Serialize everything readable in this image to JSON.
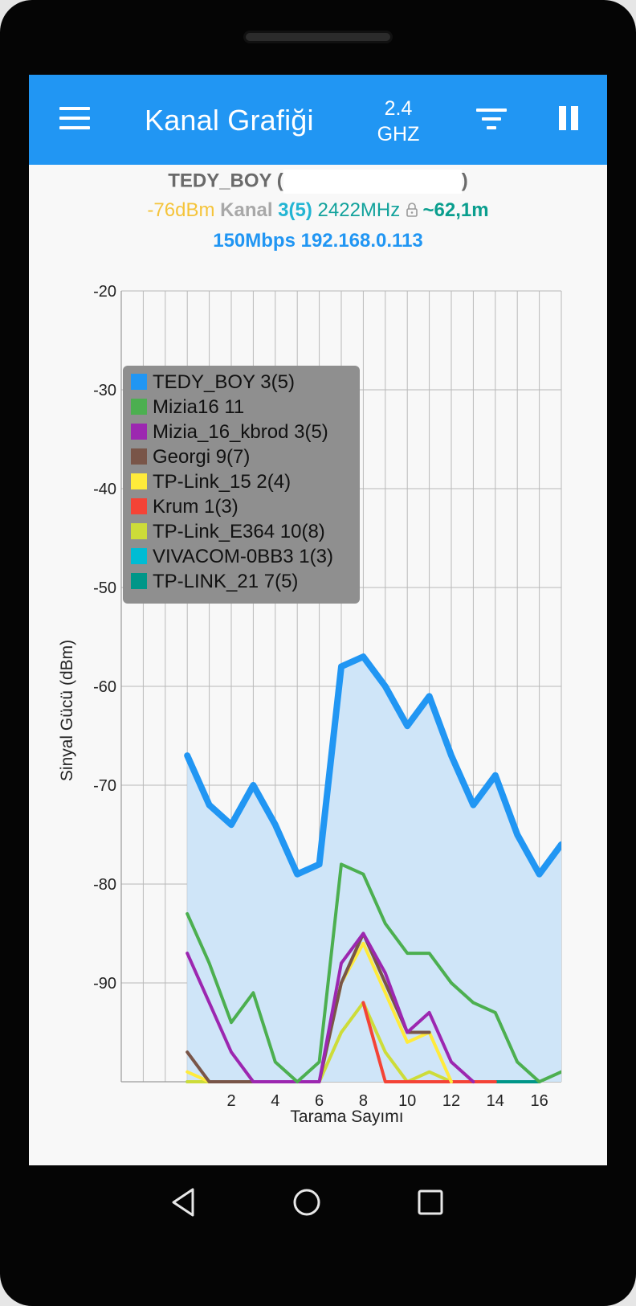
{
  "appbar": {
    "title": "Kanal Grafiği",
    "band_line1": "2.4",
    "band_line2": "GHZ",
    "menu_icon": "hamburger-menu-icon",
    "filter_icon": "filter-icon",
    "pause_icon": "pause-icon"
  },
  "connection": {
    "ssid": "TEDY_BOY",
    "open_paren": "(",
    "close_paren": ")",
    "signal": "-76dBm",
    "kanal_label": "Kanal",
    "channel": "3(5)",
    "frequency": "2422MHz",
    "lock_icon": "lock-icon",
    "distance": "~62,1m",
    "speed_ip": "150Mbps 192.168.0.113"
  },
  "colors": {
    "appbar": "#2196f3",
    "screen_bg": "#f8f8f8"
  },
  "chart_data": {
    "type": "line",
    "ylabel": "Sinyal Gücü (dBm)",
    "xlabel": "Tarama Sayımı",
    "ylim": [
      -100,
      -20
    ],
    "xlim": [
      -3,
      17
    ],
    "y_ticks": [
      -20,
      -30,
      -40,
      -50,
      -60,
      -70,
      -80,
      -90
    ],
    "x_ticks": [
      2,
      4,
      6,
      8,
      10,
      12,
      14,
      16
    ],
    "grid": true,
    "legend_position": "top-left",
    "series": [
      {
        "name": "TEDY_BOY 3(5)",
        "color": "#2196f3",
        "highlighted": true,
        "x": [
          0,
          1,
          2,
          3,
          4,
          5,
          6,
          7,
          8,
          9,
          10,
          11,
          12,
          13,
          14,
          15,
          16,
          17
        ],
        "y": [
          -67,
          -72,
          -74,
          -70,
          -74,
          -79,
          -78,
          -58,
          -57,
          -60,
          -64,
          -61,
          -67,
          -72,
          -69,
          -75,
          -79,
          -76
        ]
      },
      {
        "name": "Mizia16 11",
        "color": "#4caf50",
        "x": [
          0,
          1,
          2,
          3,
          4,
          5,
          6,
          7,
          8,
          9,
          10,
          11,
          12,
          13,
          14,
          15,
          16,
          17
        ],
        "y": [
          -83,
          -88,
          -94,
          -91,
          -98,
          -100,
          -98,
          -78,
          -79,
          -84,
          -87,
          -87,
          -90,
          -92,
          -93,
          -98,
          -100,
          -99
        ]
      },
      {
        "name": "Mizia_16_kbrod 3(5)",
        "color": "#9c27b0",
        "x": [
          0,
          1,
          2,
          3,
          4,
          5,
          6,
          7,
          8,
          9,
          10,
          11,
          12,
          13
        ],
        "y": [
          -87,
          -92,
          -97,
          -100,
          -100,
          -100,
          -100,
          -88,
          -85,
          -89,
          -95,
          -93,
          -98,
          -100
        ]
      },
      {
        "name": "Georgi 9(7)",
        "color": "#795548",
        "x": [
          0,
          1,
          6,
          7,
          8,
          9,
          10,
          11
        ],
        "y": [
          -97,
          -100,
          -100,
          -90,
          -85,
          -90,
          -95,
          -95
        ]
      },
      {
        "name": "TP-Link_15 2(4)",
        "color": "#ffeb3b",
        "x": [
          0,
          1,
          2,
          3,
          4,
          5,
          6,
          7,
          8,
          9,
          10,
          11,
          12
        ],
        "y": [
          -99,
          -100,
          -100,
          -100,
          -100,
          -100,
          -100,
          -90,
          -86,
          -91,
          -96,
          -95,
          -100
        ]
      },
      {
        "name": "Krum 1(3)",
        "color": "#f44336",
        "x": [
          8,
          9,
          13,
          14
        ],
        "y": [
          -92,
          -100,
          -100,
          -100
        ]
      },
      {
        "name": "TP-Link_E364 10(8)",
        "color": "#cddc39",
        "x": [
          0,
          1,
          2,
          3,
          4,
          5,
          6,
          7,
          8,
          9,
          10,
          11,
          12,
          13
        ],
        "y": [
          -100,
          -100,
          -100,
          -100,
          -100,
          -100,
          -100,
          -95,
          -92,
          -97,
          -100,
          -99,
          -100,
          -100
        ]
      },
      {
        "name": "VIVACOM-0BB3 1(3)",
        "color": "#00bcd4",
        "x": [
          0,
          1,
          2
        ],
        "y": [
          -100,
          -100,
          -100
        ]
      },
      {
        "name": "TP-LINK_21 7(5)",
        "color": "#009688",
        "x": [
          14,
          15,
          16
        ],
        "y": [
          -100,
          -100,
          -100
        ]
      }
    ]
  },
  "navbar": {
    "back_icon": "back-triangle-icon",
    "home_icon": "home-circle-icon",
    "recents_icon": "recents-square-icon"
  }
}
